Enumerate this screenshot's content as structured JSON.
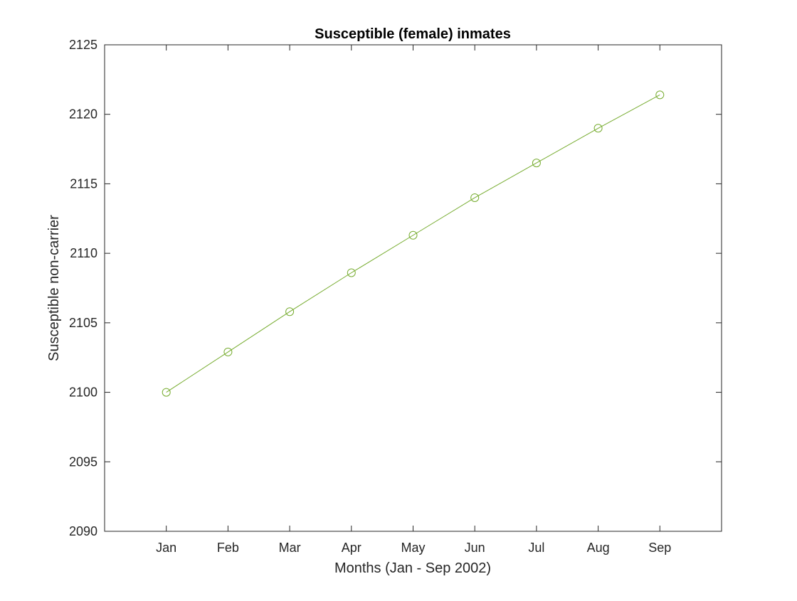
{
  "chart_data": {
    "type": "line",
    "title": "Susceptible (female) inmates",
    "xlabel": "Months (Jan - Sep 2002)",
    "ylabel": "Susceptible non-carrier",
    "categories": [
      "Jan",
      "Feb",
      "Mar",
      "Apr",
      "May",
      "Jun",
      "Jul",
      "Aug",
      "Sep"
    ],
    "xlim": [
      0,
      10
    ],
    "ylim": [
      2090,
      2125
    ],
    "yticks": [
      2090,
      2095,
      2100,
      2105,
      2110,
      2115,
      2120,
      2125
    ],
    "grid": false,
    "legend": "none",
    "series": [
      {
        "color": "#77AC30",
        "marker": "circle",
        "x": [
          1,
          2,
          3,
          4,
          5,
          6,
          7,
          8,
          9
        ],
        "values": [
          2100.0,
          2102.9,
          2105.8,
          2108.6,
          2111.3,
          2114.0,
          2116.5,
          2119.0,
          2121.4
        ]
      }
    ]
  }
}
